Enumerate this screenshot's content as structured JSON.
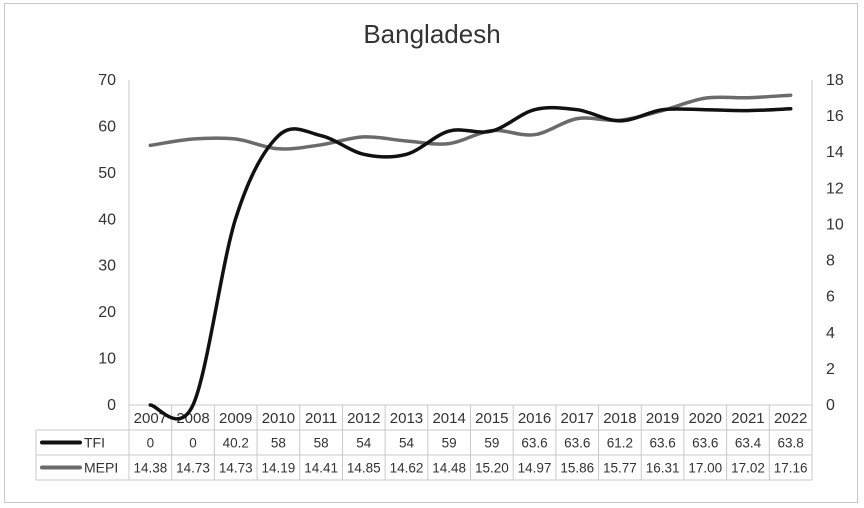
{
  "chart_data": {
    "type": "line",
    "title": "Bangladesh",
    "categories": [
      "2007",
      "2008",
      "2009",
      "2010",
      "2011",
      "2012",
      "2013",
      "2014",
      "2015",
      "2016",
      "2017",
      "2018",
      "2019",
      "2020",
      "2021",
      "2022"
    ],
    "series": [
      {
        "name": "TFI",
        "axis": "left",
        "color": "#111111",
        "values": [
          0,
          0,
          40.2,
          58,
          58,
          54,
          54,
          59,
          59,
          63.6,
          63.6,
          61.2,
          63.6,
          63.6,
          63.4,
          63.8
        ],
        "labels": [
          "0",
          "0",
          "40.2",
          "58",
          "58",
          "54",
          "54",
          "59",
          "59",
          "63.6",
          "63.6",
          "61.2",
          "63.6",
          "63.6",
          "63.4",
          "63.8"
        ]
      },
      {
        "name": "MEPI",
        "axis": "right",
        "color": "#6b6b6b",
        "values": [
          14.38,
          14.73,
          14.73,
          14.19,
          14.41,
          14.85,
          14.62,
          14.48,
          15.2,
          14.97,
          15.86,
          15.77,
          16.31,
          17.0,
          17.02,
          17.16
        ],
        "labels": [
          "14.38",
          "14.73",
          "14.73",
          "14.19",
          "14.41",
          "14.85",
          "14.62",
          "14.48",
          "15.20",
          "14.97",
          "15.86",
          "15.77",
          "16.31",
          "17.00",
          "17.02",
          "17.16"
        ]
      }
    ],
    "ylim_left": [
      0,
      70
    ],
    "yticks_left": [
      "0",
      "10",
      "20",
      "30",
      "40",
      "50",
      "60",
      "70"
    ],
    "ylim_right": [
      0,
      18
    ],
    "yticks_right": [
      "0",
      "2",
      "4",
      "6",
      "8",
      "10",
      "12",
      "14",
      "16",
      "18"
    ],
    "grid": false,
    "legend": "data-table"
  }
}
